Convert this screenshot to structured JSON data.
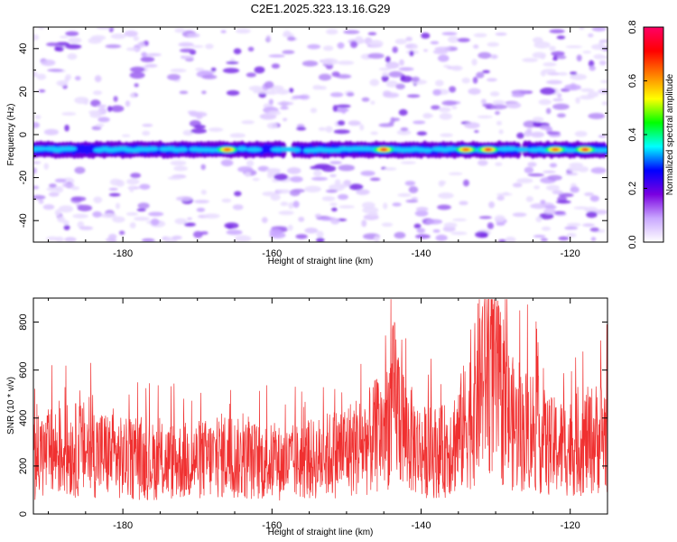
{
  "title": "C2E1.2025.323.13.16.G29",
  "chart_data": [
    {
      "type": "heatmap",
      "xlabel": "Height of straight line (km)",
      "ylabel": "Frequency (Hz)",
      "xlim": [
        -192,
        -115
      ],
      "ylim": [
        -50,
        50
      ],
      "xticks": [
        -180,
        -160,
        -140,
        -120
      ],
      "yticks": [
        -40,
        -20,
        0,
        20,
        40
      ],
      "band_center_hz": -7,
      "hotspots_km": [
        -166,
        -145,
        -134,
        -131,
        -122,
        -118
      ],
      "colorbar": {
        "label": "Normalized spectral amplitude",
        "range": [
          0.0,
          0.8
        ],
        "ticks": [
          "0.0",
          "0.2",
          "0.4",
          "0.6",
          "0.8"
        ],
        "colors": [
          "#ffffff",
          "#c9a7ff",
          "#7a00e0",
          "#0000ff",
          "#00ffff",
          "#00ff00",
          "#ffff00",
          "#ff8000",
          "#ff0000",
          "#ff0066"
        ]
      }
    },
    {
      "type": "line",
      "xlabel": "Height of straight line (km)",
      "ylabel": "SNR (10 * v/v)",
      "xlim": [
        -192,
        -115
      ],
      "ylim": [
        0,
        900
      ],
      "xticks": [
        -180,
        -160,
        -140,
        -120
      ],
      "yticks": [
        0,
        200,
        400,
        600,
        800
      ],
      "line_color": "#f03030",
      "envelope": {
        "x": [
          -192,
          -189,
          -185,
          -180,
          -176,
          -172,
          -168,
          -166,
          -165,
          -162,
          -158,
          -154,
          -150,
          -147,
          -145,
          -143.5,
          -142,
          -140,
          -137,
          -135,
          -133,
          -131.5,
          -130.5,
          -129,
          -127,
          -125,
          -123,
          -120,
          -117,
          -115
        ],
        "y": [
          230,
          260,
          270,
          230,
          220,
          220,
          230,
          250,
          230,
          220,
          210,
          230,
          270,
          300,
          350,
          480,
          330,
          260,
          260,
          320,
          430,
          620,
          600,
          440,
          340,
          360,
          280,
          280,
          310,
          340
        ]
      }
    }
  ]
}
